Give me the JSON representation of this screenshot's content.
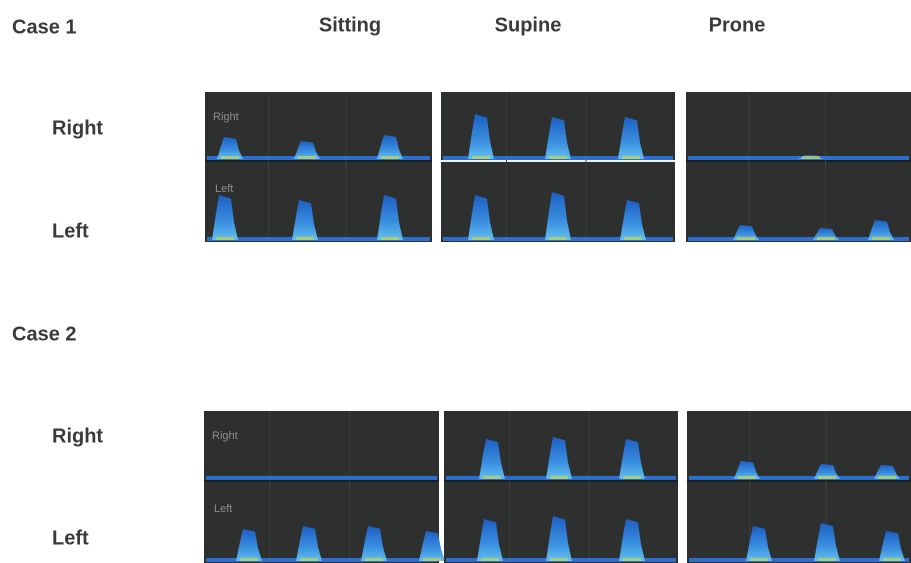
{
  "columns": [
    "Sitting",
    "Supine",
    "Prone"
  ],
  "cases": [
    {
      "title": "Case 1",
      "rows": [
        "Right",
        "Left"
      ],
      "panel_labels": [
        "Right",
        "Left"
      ]
    },
    {
      "title": "Case 2",
      "rows": [
        "Right",
        "Left"
      ],
      "panel_labels": [
        "Right",
        "Left"
      ]
    }
  ]
}
